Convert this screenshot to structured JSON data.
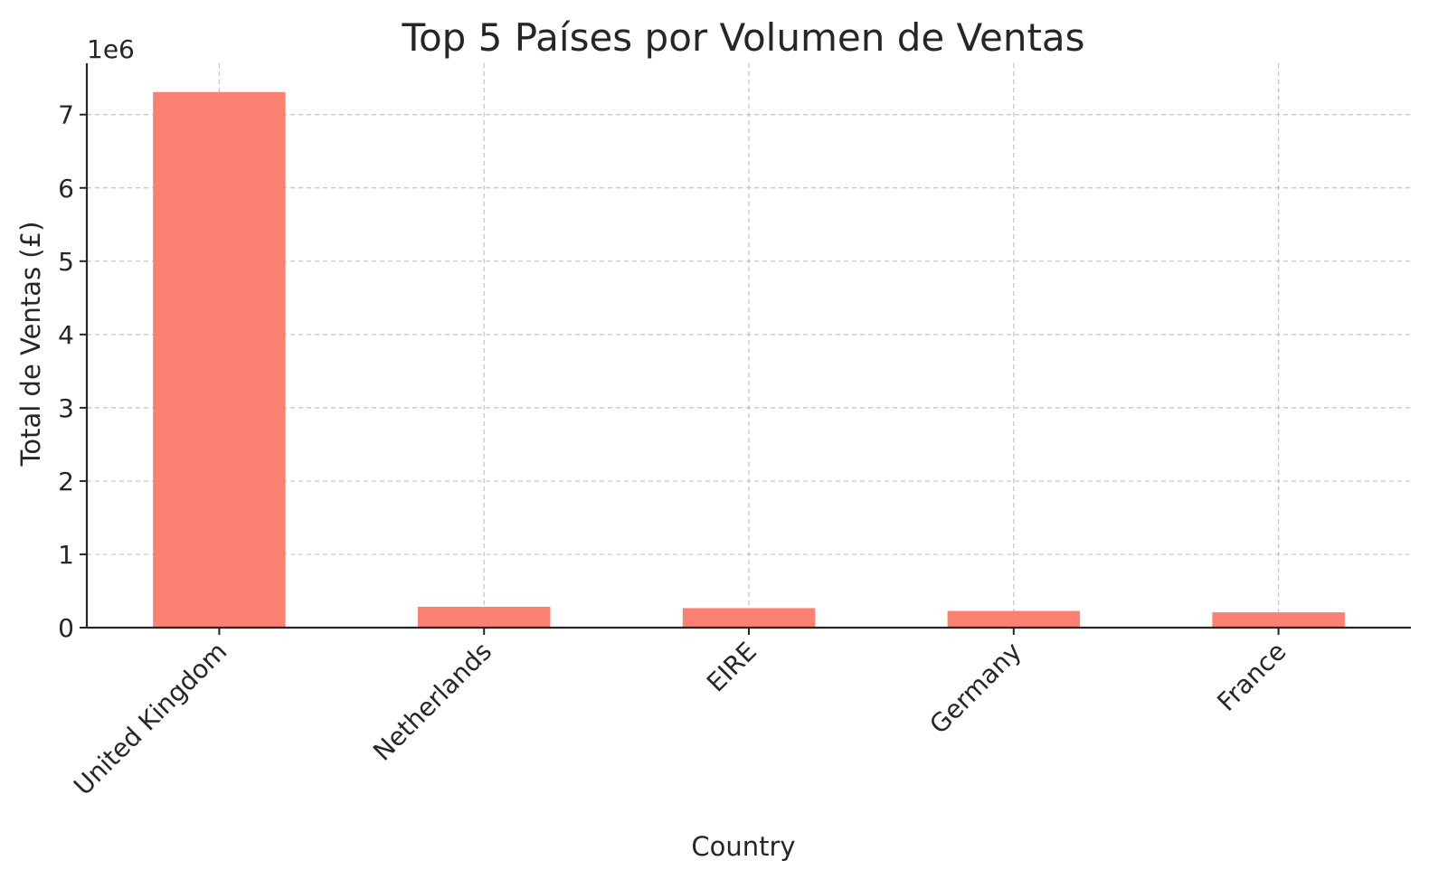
{
  "chart_data": {
    "type": "bar",
    "title": "Top 5 Países por Volumen de Ventas",
    "xlabel": "Country",
    "ylabel": "Total de Ventas (£)",
    "offset_label": "1e6",
    "categories": [
      "United Kingdom",
      "Netherlands",
      "EIRE",
      "Germany",
      "France"
    ],
    "values": [
      7308000,
      285000,
      266000,
      228000,
      209000
    ],
    "ylim": [
      0,
      7700000
    ],
    "yticks": [
      0,
      1,
      2,
      3,
      4,
      5,
      6,
      7
    ],
    "ytick_scale": 1000000,
    "grid": true,
    "bar_color": "#fa8072"
  }
}
